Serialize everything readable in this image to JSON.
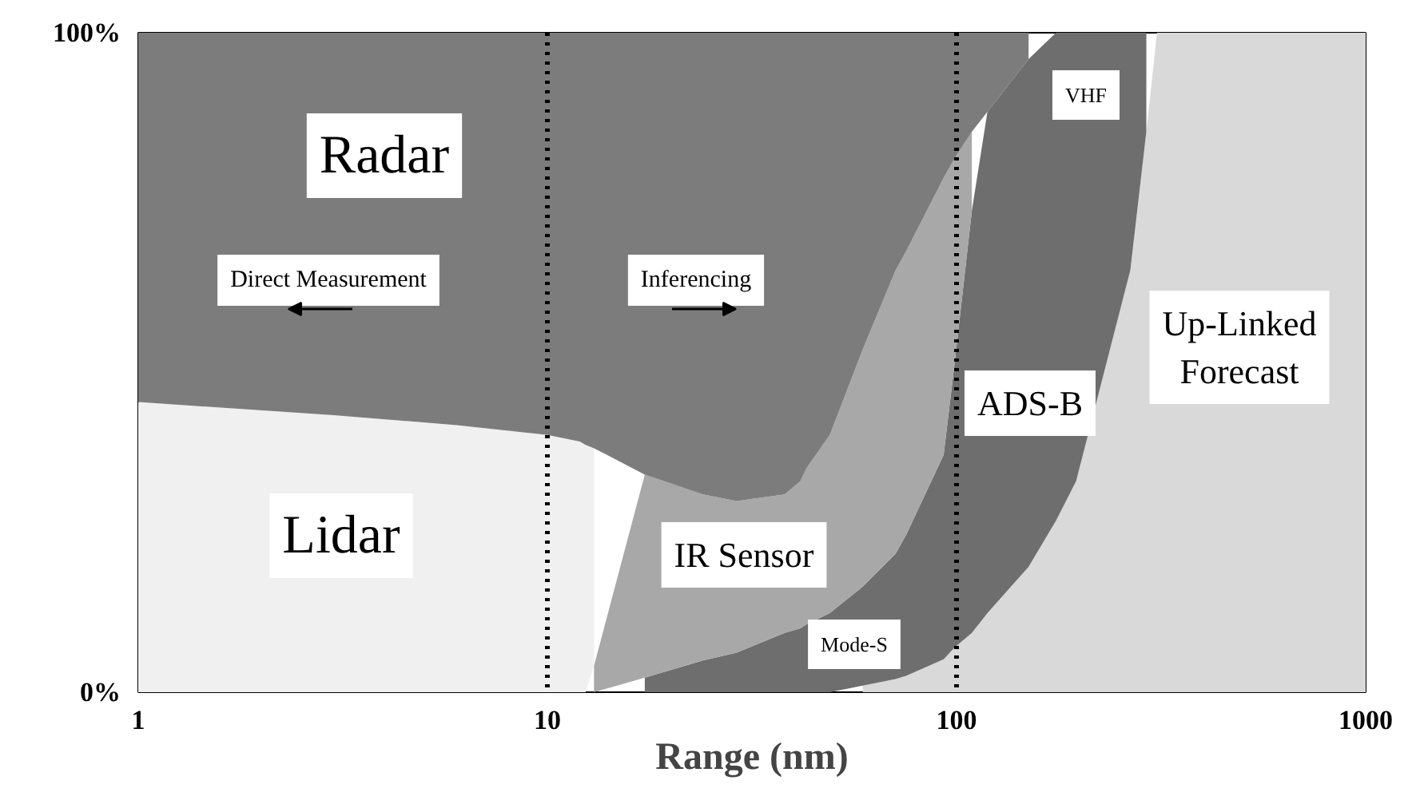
{
  "chart_data": {
    "type": "area",
    "stacked": true,
    "xlabel": "Range (nm)",
    "log": "x",
    "xlim": [
      1,
      1000
    ],
    "xticks": [
      1,
      10,
      100,
      1000
    ],
    "ylim": [
      0,
      100
    ],
    "yticks": [
      {
        "value": 0,
        "label": "0%"
      },
      {
        "value": 100,
        "label": "100%"
      }
    ],
    "x": [
      1,
      3,
      6,
      10,
      12,
      12.4,
      13,
      17.3,
      24,
      29,
      38,
      41.5,
      43,
      49,
      59,
      71,
      75.5,
      93,
      99,
      109,
      119,
      150,
      175,
      196,
      266,
      291,
      309,
      1000
    ],
    "series": [
      {
        "color": "#d9d9d9",
        "values": [
          null,
          null,
          null,
          null,
          null,
          null,
          null,
          null,
          null,
          null,
          null,
          null,
          null,
          null,
          1,
          2,
          2.5,
          5,
          6.8,
          9,
          12,
          19,
          26,
          32,
          64,
          85,
          100,
          100
        ]
      },
      {
        "color": "#6e6e6e",
        "values": [
          null,
          null,
          null,
          null,
          null,
          null,
          null,
          2.2,
          4.8,
          6,
          9,
          9.7,
          10.3,
          12,
          15,
          19,
          21.5,
          31,
          43.2,
          64,
          76,
          77,
          74,
          68,
          36,
          15,
          null,
          null
        ]
      },
      {
        "color": "#a8a8a8",
        "values": [
          null,
          null,
          null,
          null,
          null,
          null,
          4,
          30.8,
          25.2,
          23,
          21,
          22.3,
          23.7,
          27,
          36,
          43,
          43,
          42,
          31,
          12,
          null,
          null,
          null,
          null,
          null,
          null,
          null,
          null
        ]
      },
      {
        "color": "#f0f0f0",
        "values": [
          44,
          42,
          40.5,
          39,
          38,
          37.5,
          33,
          null,
          null,
          null,
          null,
          null,
          null,
          null,
          null,
          null,
          null,
          null,
          null,
          null,
          null,
          null,
          null,
          null,
          null,
          null,
          null,
          null
        ]
      },
      {
        "color": "#7c7c7c",
        "values": [
          56,
          58,
          59.5,
          61,
          62,
          62.5,
          63,
          67,
          70,
          71,
          70,
          68,
          66,
          61,
          48,
          36,
          33,
          22,
          19,
          15,
          12,
          4,
          null,
          null,
          null,
          null,
          null,
          null
        ]
      }
    ],
    "ref_lines": [
      {
        "axis": "x",
        "value": 10,
        "color": "#000000",
        "line_style": "dotted"
      },
      {
        "axis": "x",
        "value": 100,
        "color": "#000000",
        "line_style": "dotted"
      }
    ],
    "annotations": [
      "Radar",
      "Direct Measurement",
      "Inferencing",
      "Lidar",
      "IR Sensor",
      "Mode-S",
      "VHF",
      "ADS-B",
      "Up-Linked\nForecast"
    ]
  }
}
